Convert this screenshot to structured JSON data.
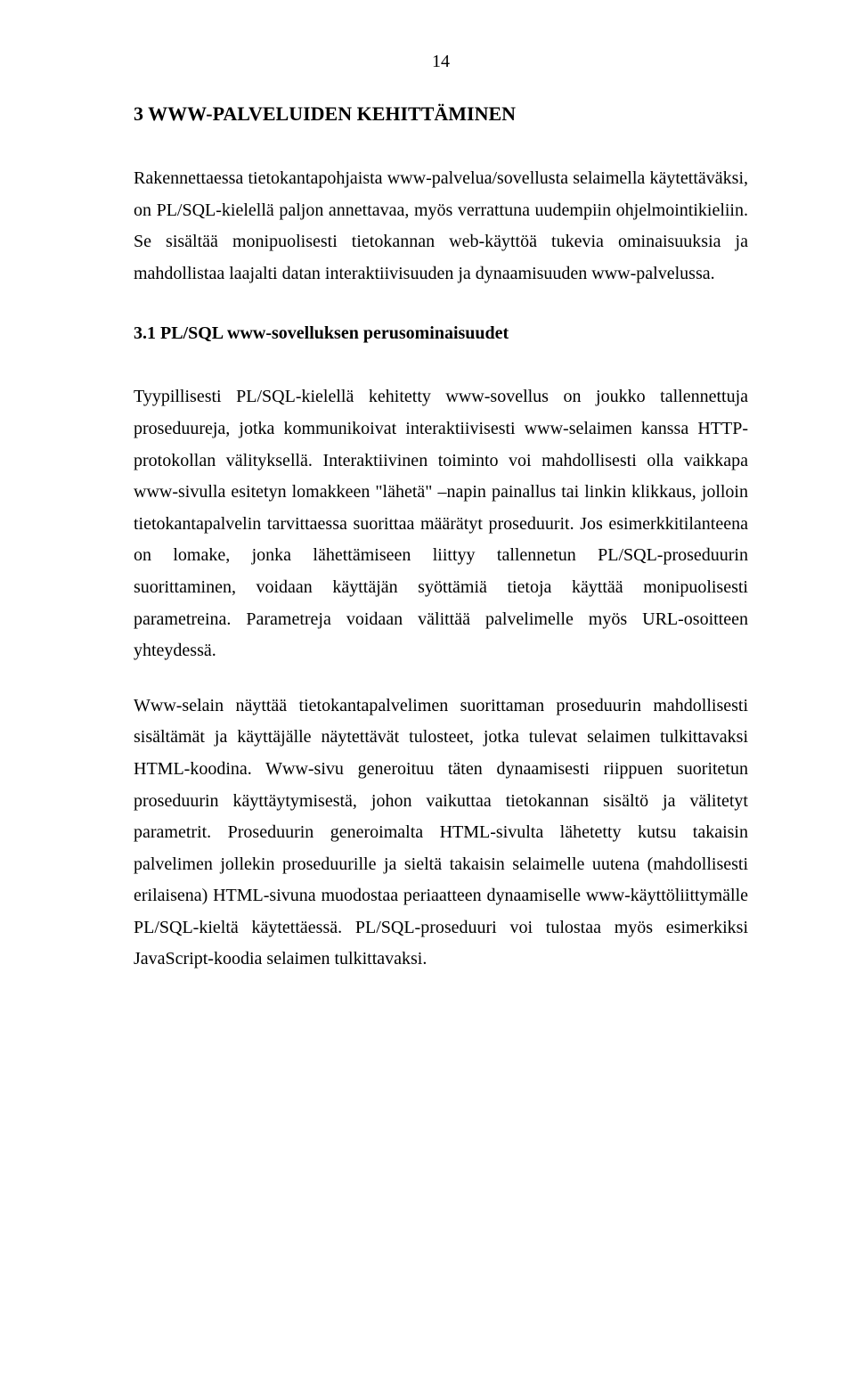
{
  "pageNumber": "14",
  "heading1": "3 WWW-PALVELUIDEN KEHITTÄMINEN",
  "para1": "Rakennettaessa tietokantapohjaista www-palvelua/sovellusta selaimella käytettäväksi, on PL/SQL-kielellä paljon annettavaa, myös verrattuna uudempiin ohjelmointikieliin. Se sisältää monipuolisesti tietokannan web-käyttöä tukevia ominaisuuksia ja mahdollistaa laajalti datan interaktiivisuuden ja dynaamisuuden www-palvelussa.",
  "heading2": "3.1   PL/SQL www-sovelluksen perusominaisuudet",
  "para2": "Tyypillisesti PL/SQL-kielellä kehitetty www-sovellus on joukko tallennettuja proseduureja, jotka kommunikoivat interaktiivisesti www-selaimen kanssa HTTP-protokollan välityksellä. Interaktiivinen toiminto voi mahdollisesti olla vaikkapa www-sivulla esitetyn lomakkeen \"lähetä\" –napin painallus tai linkin klikkaus, jolloin tietokantapalvelin tarvittaessa suorittaa määrätyt proseduurit. Jos esimerkkitilanteena on lomake, jonka lähettämiseen liittyy tallennetun PL/SQL-proseduurin suorittaminen, voidaan käyttäjän syöttämiä tietoja käyttää monipuolisesti parametreina. Parametreja voidaan välittää palvelimelle myös URL-osoitteen yhteydessä.",
  "para3": "Www-selain näyttää tietokantapalvelimen suorittaman proseduurin mahdollisesti sisältämät ja käyttäjälle näytettävät tulosteet, jotka tulevat selaimen tulkittavaksi HTML-koodina. Www-sivu generoituu täten dynaamisesti riippuen suoritetun proseduurin käyttäytymisestä, johon vaikuttaa tietokannan sisältö ja välitetyt parametrit. Proseduurin generoimalta HTML-sivulta lähetetty kutsu takaisin palvelimen jollekin proseduurille ja sieltä takaisin selaimelle uutena (mahdollisesti erilaisena) HTML-sivuna muodostaa periaatteen dynaamiselle www-käyttöliittymälle PL/SQL-kieltä käytettäessä. PL/SQL-proseduuri voi tulostaa myös esimerkiksi JavaScript-koodia selaimen tulkittavaksi."
}
